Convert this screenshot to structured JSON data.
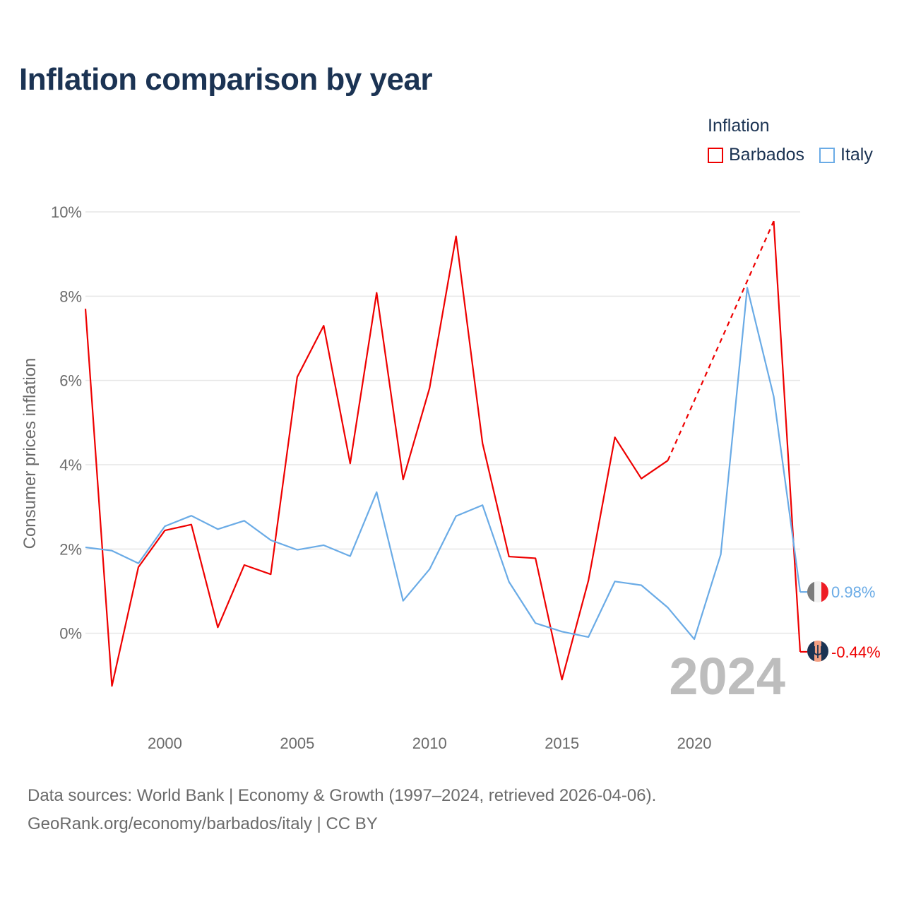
{
  "title": "Inflation comparison by year",
  "legend": {
    "title": "Inflation",
    "items": [
      {
        "label": "Barbados",
        "color": "#ee0000"
      },
      {
        "label": "Italy",
        "color": "#6aabe6"
      }
    ]
  },
  "watermark_year": "2024",
  "footer": {
    "line1": "Data sources: World Bank | Economy & Growth (1997–2024, retrieved 2026-04-06).",
    "line2": "GeoRank.org/economy/barbados/italy | CC BY"
  },
  "chart_data": {
    "type": "line",
    "title": "Inflation comparison by year",
    "xlabel": "",
    "ylabel": "Consumer prices inflation",
    "xlim": [
      1997,
      2024
    ],
    "ylim": [
      -2,
      10
    ],
    "x_ticks": [
      2000,
      2005,
      2010,
      2015,
      2020
    ],
    "y_ticks": [
      {
        "value": 0,
        "label": "0%"
      },
      {
        "value": 2,
        "label": "2%"
      },
      {
        "value": 4,
        "label": "4%"
      },
      {
        "value": 6,
        "label": "6%"
      },
      {
        "value": 8,
        "label": "8%"
      },
      {
        "value": 10,
        "label": "10%"
      }
    ],
    "grid": true,
    "x": [
      1997,
      1998,
      1999,
      2000,
      2001,
      2002,
      2003,
      2004,
      2005,
      2006,
      2007,
      2008,
      2009,
      2010,
      2011,
      2012,
      2013,
      2014,
      2015,
      2016,
      2017,
      2018,
      2019,
      2020,
      2021,
      2022,
      2023,
      2024
    ],
    "series": [
      {
        "name": "Barbados",
        "color": "#ee0000",
        "values": [
          7.7,
          -1.25,
          1.57,
          2.44,
          2.58,
          0.14,
          1.62,
          1.4,
          6.08,
          7.3,
          4.03,
          8.08,
          3.65,
          5.82,
          9.42,
          4.51,
          1.82,
          1.78,
          -1.1,
          1.25,
          4.65,
          3.67,
          4.1,
          null,
          null,
          null,
          9.78,
          -0.44
        ],
        "dashed_gap": {
          "from_year": 2019,
          "to_year": 2023
        },
        "end_label": "-0.44%"
      },
      {
        "name": "Italy",
        "color": "#6aabe6",
        "values": [
          2.04,
          1.96,
          1.66,
          2.54,
          2.79,
          2.47,
          2.67,
          2.21,
          1.98,
          2.09,
          1.83,
          3.35,
          0.77,
          1.52,
          2.78,
          3.04,
          1.22,
          0.24,
          0.04,
          -0.09,
          1.23,
          1.14,
          0.61,
          -0.14,
          1.87,
          8.2,
          5.62,
          0.98
        ],
        "end_label": "0.98%"
      }
    ]
  }
}
